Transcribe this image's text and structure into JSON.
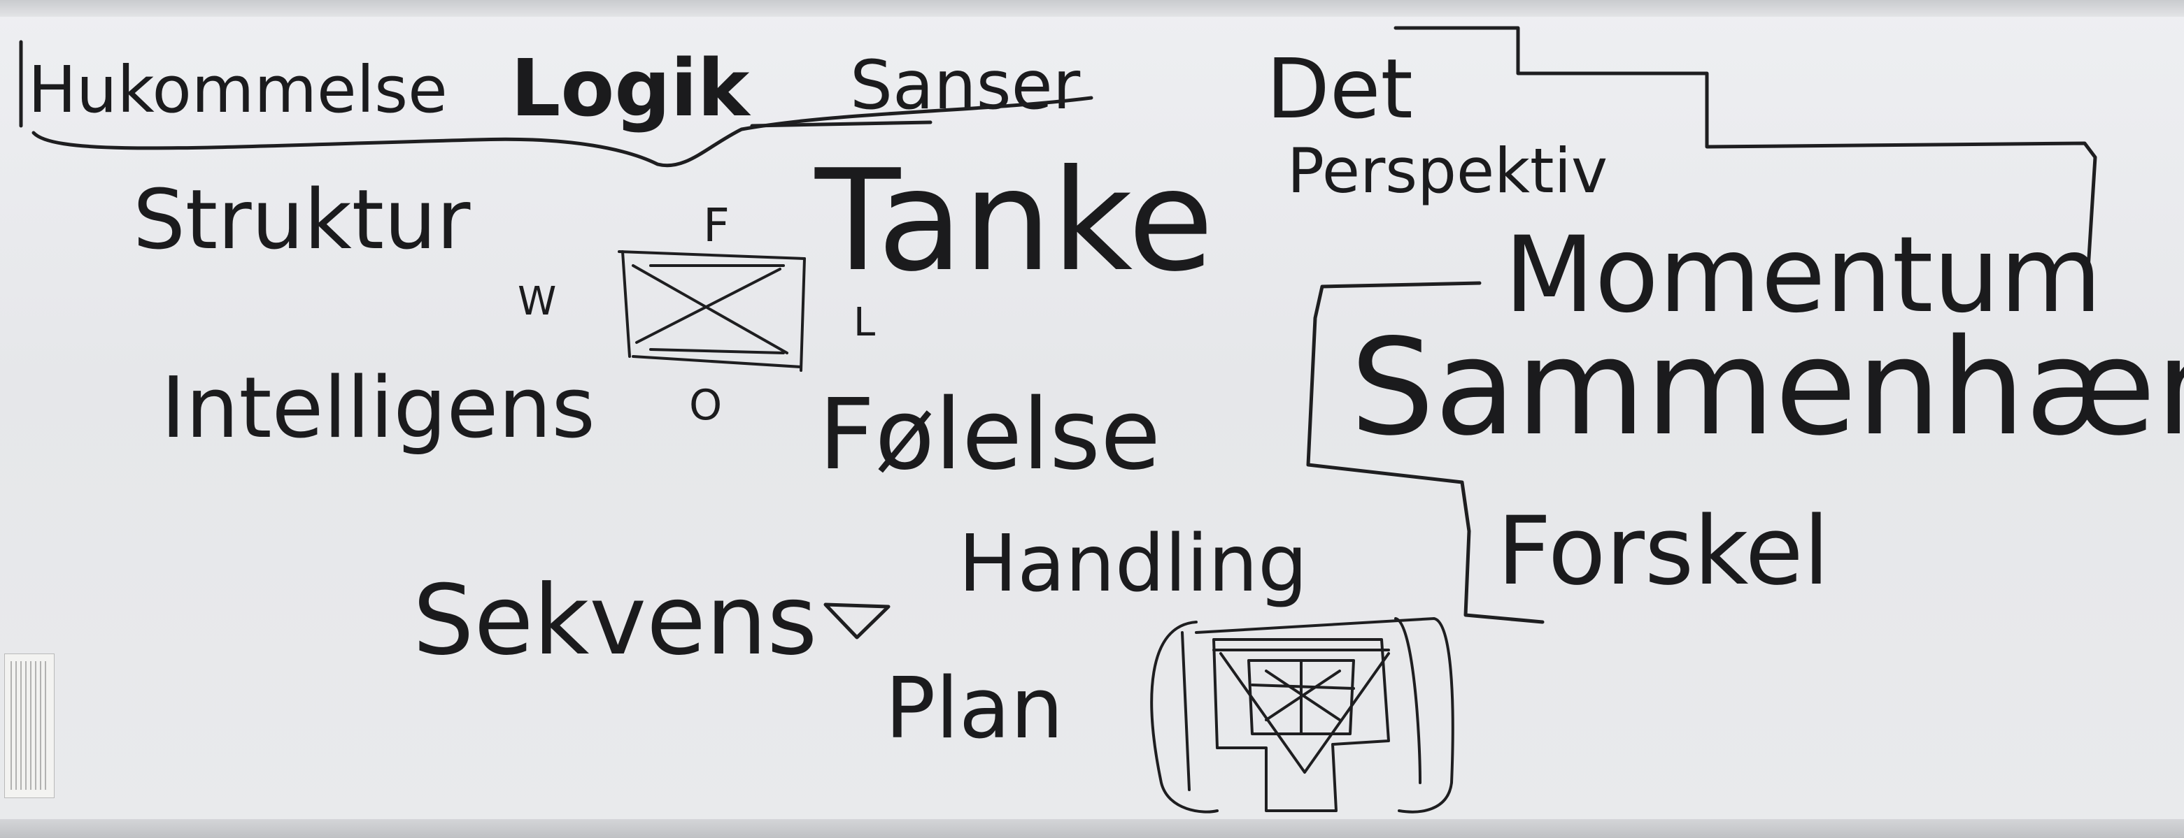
{
  "board_words": {
    "hukommelse": "Hukommelse",
    "logik": "Logik",
    "sanser": "Sanser",
    "det": "Det",
    "perspektiv": "Perspektiv",
    "struktur": "Struktur",
    "tanke": "Tanke",
    "momentum": "Momentum",
    "intelligens": "Intelligens",
    "folelse": "Følelse",
    "sammenhaeng": "Sammenhæng",
    "forskel": "Forskel",
    "sekvens": "Sekvens",
    "handling": "Handling",
    "plan": "Plan"
  },
  "diagram_labels": {
    "top": "F",
    "left": "W",
    "right": "L",
    "bottom": "O"
  },
  "ink_color": "#1b1b1d"
}
